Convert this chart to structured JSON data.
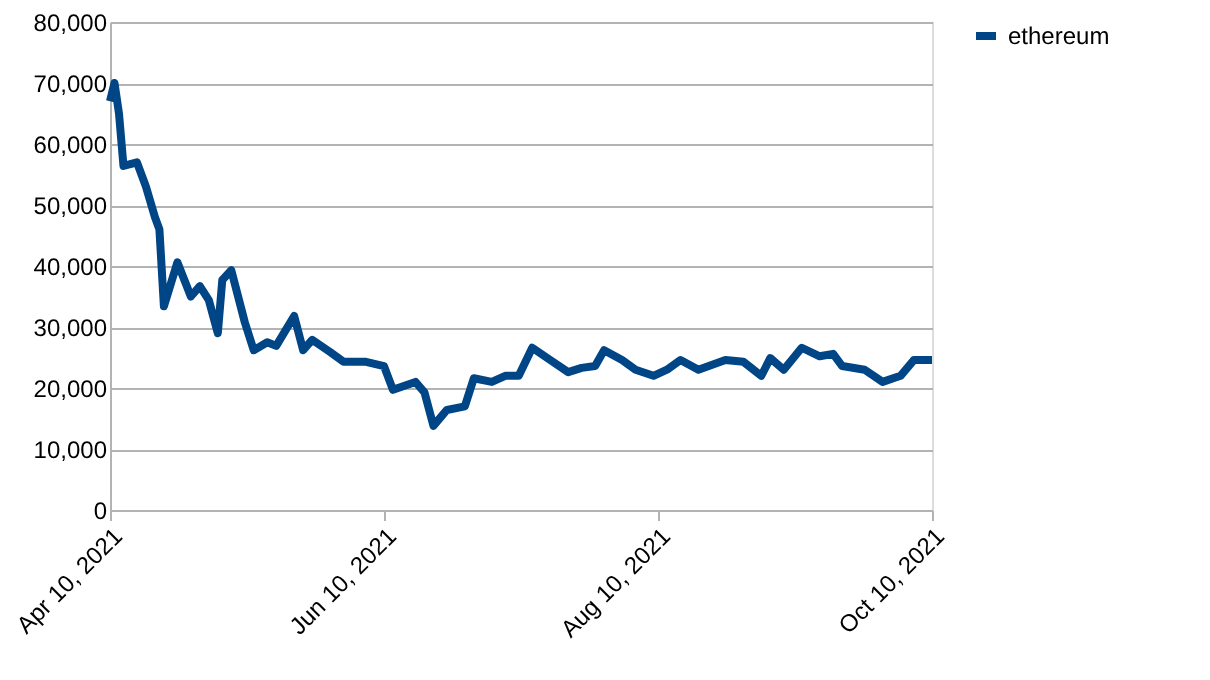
{
  "chart_data": {
    "type": "line",
    "x": [
      "2021-04-10",
      "2021-04-11",
      "2021-04-12",
      "2021-04-13",
      "2021-04-16",
      "2021-04-18",
      "2021-04-20",
      "2021-04-21",
      "2021-04-22",
      "2021-04-25",
      "2021-04-28",
      "2021-04-30",
      "2021-05-02",
      "2021-05-04",
      "2021-05-05",
      "2021-05-07",
      "2021-05-10",
      "2021-05-12",
      "2021-05-15",
      "2021-05-17",
      "2021-05-21",
      "2021-05-23",
      "2021-05-25",
      "2021-05-29",
      "2021-06-01",
      "2021-06-06",
      "2021-06-10",
      "2021-06-12",
      "2021-06-17",
      "2021-06-19",
      "2021-06-21",
      "2021-06-24",
      "2021-06-28",
      "2021-06-30",
      "2021-07-04",
      "2021-07-07",
      "2021-07-10",
      "2021-07-13",
      "2021-07-17",
      "2021-07-21",
      "2021-07-24",
      "2021-07-27",
      "2021-07-29",
      "2021-08-02",
      "2021-08-05",
      "2021-08-09",
      "2021-08-12",
      "2021-08-15",
      "2021-08-19",
      "2021-08-25",
      "2021-08-29",
      "2021-09-02",
      "2021-09-04",
      "2021-09-07",
      "2021-09-11",
      "2021-09-15",
      "2021-09-18",
      "2021-09-20",
      "2021-09-25",
      "2021-09-29",
      "2021-10-03",
      "2021-10-06",
      "2021-10-10"
    ],
    "series": [
      {
        "name": "ethereum",
        "color": "#004586",
        "values": [
          67000,
          70000,
          65000,
          56400,
          57000,
          53000,
          48000,
          46000,
          33400,
          40600,
          35000,
          36700,
          34400,
          29000,
          37700,
          39300,
          30800,
          26200,
          27500,
          26900,
          31800,
          26200,
          27900,
          25900,
          24300,
          24300,
          23600,
          19700,
          21000,
          19300,
          13800,
          16400,
          17000,
          21600,
          21000,
          22000,
          22000,
          26600,
          24600,
          22600,
          23300,
          23600,
          26200,
          24600,
          23000,
          22000,
          23000,
          24600,
          23000,
          24600,
          24300,
          22000,
          24900,
          23000,
          26600,
          25200,
          25600,
          23600,
          23000,
          21000,
          22000,
          24600,
          24600
        ]
      }
    ],
    "xlim": [
      "2021-04-10",
      "2021-10-10"
    ],
    "xticks": [
      {
        "value": "2021-04-10",
        "label": "Apr 10, 2021"
      },
      {
        "value": "2021-06-10",
        "label": "Jun 10, 2021"
      },
      {
        "value": "2021-08-10",
        "label": "Aug 10, 2021"
      },
      {
        "value": "2021-10-10",
        "label": "Oct 10, 2021"
      }
    ],
    "ylim": [
      0,
      80000
    ],
    "yticks": [
      {
        "value": 0,
        "label": "0"
      },
      {
        "value": 10000,
        "label": "10,000"
      },
      {
        "value": 20000,
        "label": "20,000"
      },
      {
        "value": 30000,
        "label": "30,000"
      },
      {
        "value": 40000,
        "label": "40,000"
      },
      {
        "value": 50000,
        "label": "50,000"
      },
      {
        "value": 60000,
        "label": "60,000"
      },
      {
        "value": 70000,
        "label": "70,000"
      },
      {
        "value": 80000,
        "label": "80,000"
      }
    ],
    "grid": "y",
    "legend": "right",
    "line_style": "solid",
    "marker": "none"
  }
}
